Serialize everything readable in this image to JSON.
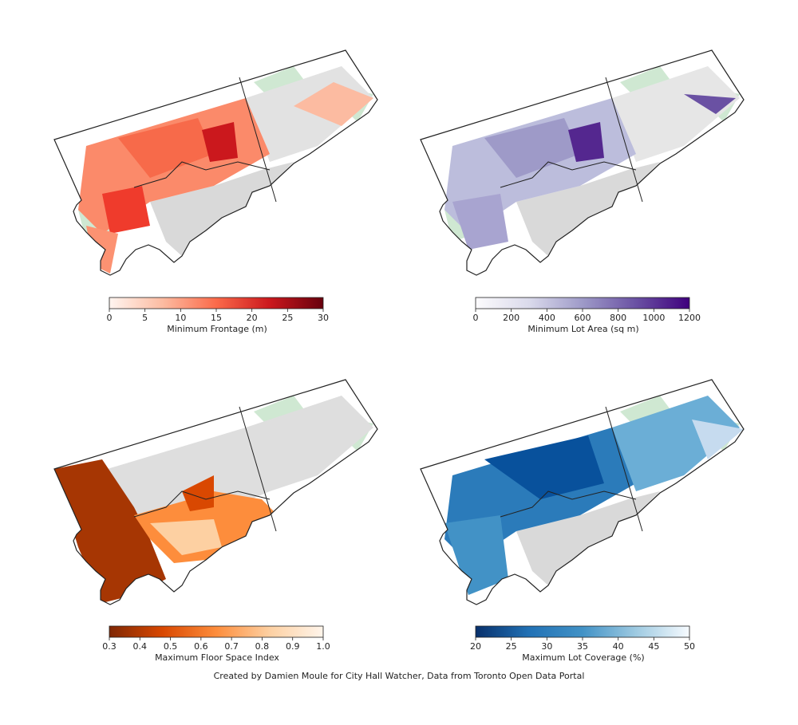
{
  "panels": [
    {
      "colorbar_title": "Minimum Frontage (m)",
      "ticks": [
        "0",
        "5",
        "10",
        "15",
        "20",
        "25",
        "30"
      ],
      "colors": [
        "#fff5f0",
        "#fcbba1",
        "#fb6a4a",
        "#cb181d",
        "#67000d"
      ]
    },
    {
      "colorbar_title": "Minimum Lot Area (sq m)",
      "ticks": [
        "0",
        "200",
        "400",
        "600",
        "800",
        "1000",
        "1200"
      ],
      "colors": [
        "#fcfbfd",
        "#dadaeb",
        "#9e9ac8",
        "#6a51a3",
        "#3f007d"
      ]
    },
    {
      "colorbar_title": "Maximum Floor Space Index",
      "ticks": [
        "0.3",
        "0.4",
        "0.5",
        "0.6",
        "0.7",
        "0.8",
        "0.9",
        "1.0"
      ],
      "colors": [
        "#7f2704",
        "#d94801",
        "#fd8d3c",
        "#fdd0a2",
        "#fff5eb"
      ]
    },
    {
      "colorbar_title": "Maximum Lot Coverage (%)",
      "ticks": [
        "20",
        "25",
        "30",
        "35",
        "40",
        "45",
        "50"
      ],
      "colors": [
        "#08306b",
        "#2171b5",
        "#4292c6",
        "#9ecae1",
        "#f7fbff"
      ]
    }
  ],
  "credit": "Created by Damien Moule for City Hall Watcher, Data from Toronto Open Data Portal",
  "colors": {
    "parks_green": "#cfe8d2",
    "no_data_gray": "#d9d9d9",
    "outline": "#222222"
  }
}
